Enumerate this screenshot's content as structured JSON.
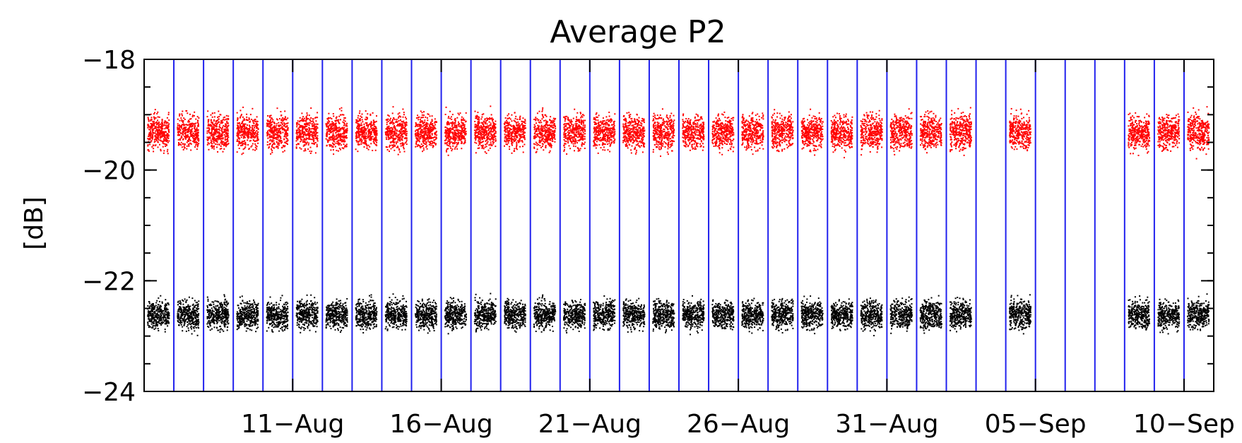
{
  "chart_data": {
    "type": "scatter",
    "title": "Average P2",
    "xlabel": "",
    "ylabel": "[dB]",
    "x_ticks": [
      "11-Aug",
      "16-Aug",
      "21-Aug",
      "26-Aug",
      "31-Aug",
      "05-Sep",
      "10-Sep"
    ],
    "y_ticks": [
      "-18",
      "-20",
      "-22",
      "-24"
    ],
    "xlim": [
      "2023-08-06",
      "2023-09-11"
    ],
    "ylim": [
      -24,
      -18
    ],
    "grid": false,
    "series": [
      {
        "color": "#ff0000",
        "center": -19.3,
        "spread": 0.55,
        "days": [
          "08-07",
          "08-08",
          "08-09",
          "08-10",
          "08-11",
          "08-12",
          "08-13",
          "08-14",
          "08-15",
          "08-16",
          "08-17",
          "08-18",
          "08-19",
          "08-20",
          "08-21",
          "08-22",
          "08-23",
          "08-24",
          "08-25",
          "08-26",
          "08-27",
          "08-28",
          "08-29",
          "08-30",
          "08-31",
          "09-01",
          "09-02",
          "09-03",
          "09-05",
          "09-09",
          "09-10",
          "09-11"
        ]
      },
      {
        "color": "#000000",
        "center": -22.6,
        "spread": 0.45,
        "days": [
          "08-07",
          "08-08",
          "08-09",
          "08-10",
          "08-11",
          "08-12",
          "08-13",
          "08-14",
          "08-15",
          "08-16",
          "08-17",
          "08-18",
          "08-19",
          "08-20",
          "08-21",
          "08-22",
          "08-23",
          "08-24",
          "08-25",
          "08-26",
          "08-27",
          "08-28",
          "08-29",
          "08-30",
          "08-31",
          "09-01",
          "09-02",
          "09-03",
          "09-05",
          "09-09",
          "09-10",
          "09-11"
        ]
      }
    ],
    "day_boundaries": [
      "08-07",
      "08-08",
      "08-09",
      "08-10",
      "08-11",
      "08-12",
      "08-13",
      "08-14",
      "08-15",
      "08-16",
      "08-17",
      "08-18",
      "08-19",
      "08-20",
      "08-21",
      "08-22",
      "08-23",
      "08-24",
      "08-25",
      "08-26",
      "08-27",
      "08-28",
      "08-29",
      "08-30",
      "08-31",
      "09-01",
      "09-02",
      "09-03",
      "09-04",
      "09-05",
      "09-06",
      "09-07",
      "09-08",
      "09-09",
      "09-10",
      "09-11"
    ],
    "colors": {
      "day_boundary": "#2020ee",
      "axis": "#000000"
    }
  }
}
